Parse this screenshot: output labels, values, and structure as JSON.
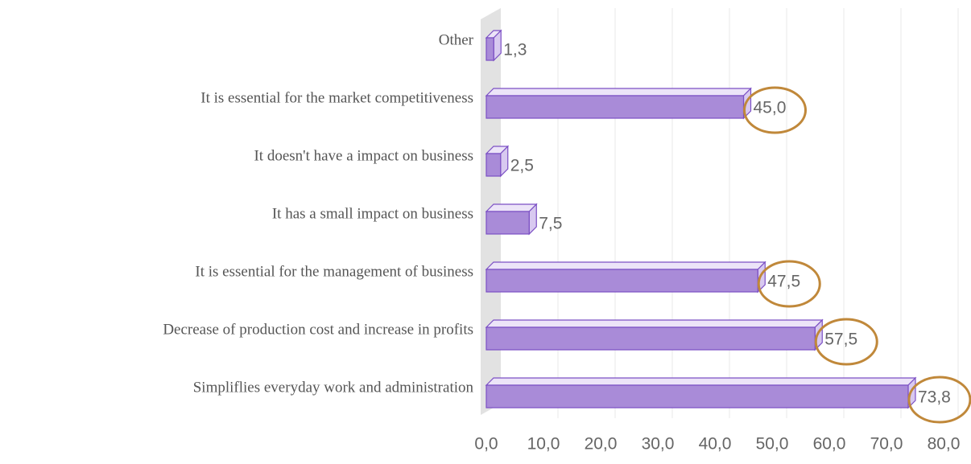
{
  "chart_data": {
    "type": "bar3d_horizontal",
    "categories": [
      "Other",
      "It is essential for the market competitiveness",
      "It doesn't have a impact on business",
      "It has a small impact on business",
      "It is essential for the management of business",
      "Decrease of production cost and increase in profits",
      "Simpliflies everyday work and administration"
    ],
    "values": [
      1.3,
      45.0,
      2.5,
      7.5,
      47.5,
      57.5,
      73.8
    ],
    "value_labels": [
      "1,3",
      "45,0",
      "2,5",
      "7,5",
      "47,5",
      "57,5",
      "73,8"
    ],
    "color": "#a98bd8",
    "highlighted": [
      1,
      4,
      5,
      6
    ],
    "highlight_color": "#c0883a",
    "xlim": [
      0,
      80
    ],
    "xticks": [
      {
        "value": 0,
        "label": "0,0"
      },
      {
        "value": 10,
        "label": "10,0"
      },
      {
        "value": 20,
        "label": "20,0"
      },
      {
        "value": 30,
        "label": "30,0"
      },
      {
        "value": 40,
        "label": "40,0"
      },
      {
        "value": 50,
        "label": "50,0"
      },
      {
        "value": 60,
        "label": "60,0"
      },
      {
        "value": 70,
        "label": "70,0"
      },
      {
        "value": 80,
        "label": "80,0"
      }
    ],
    "grid": true
  }
}
